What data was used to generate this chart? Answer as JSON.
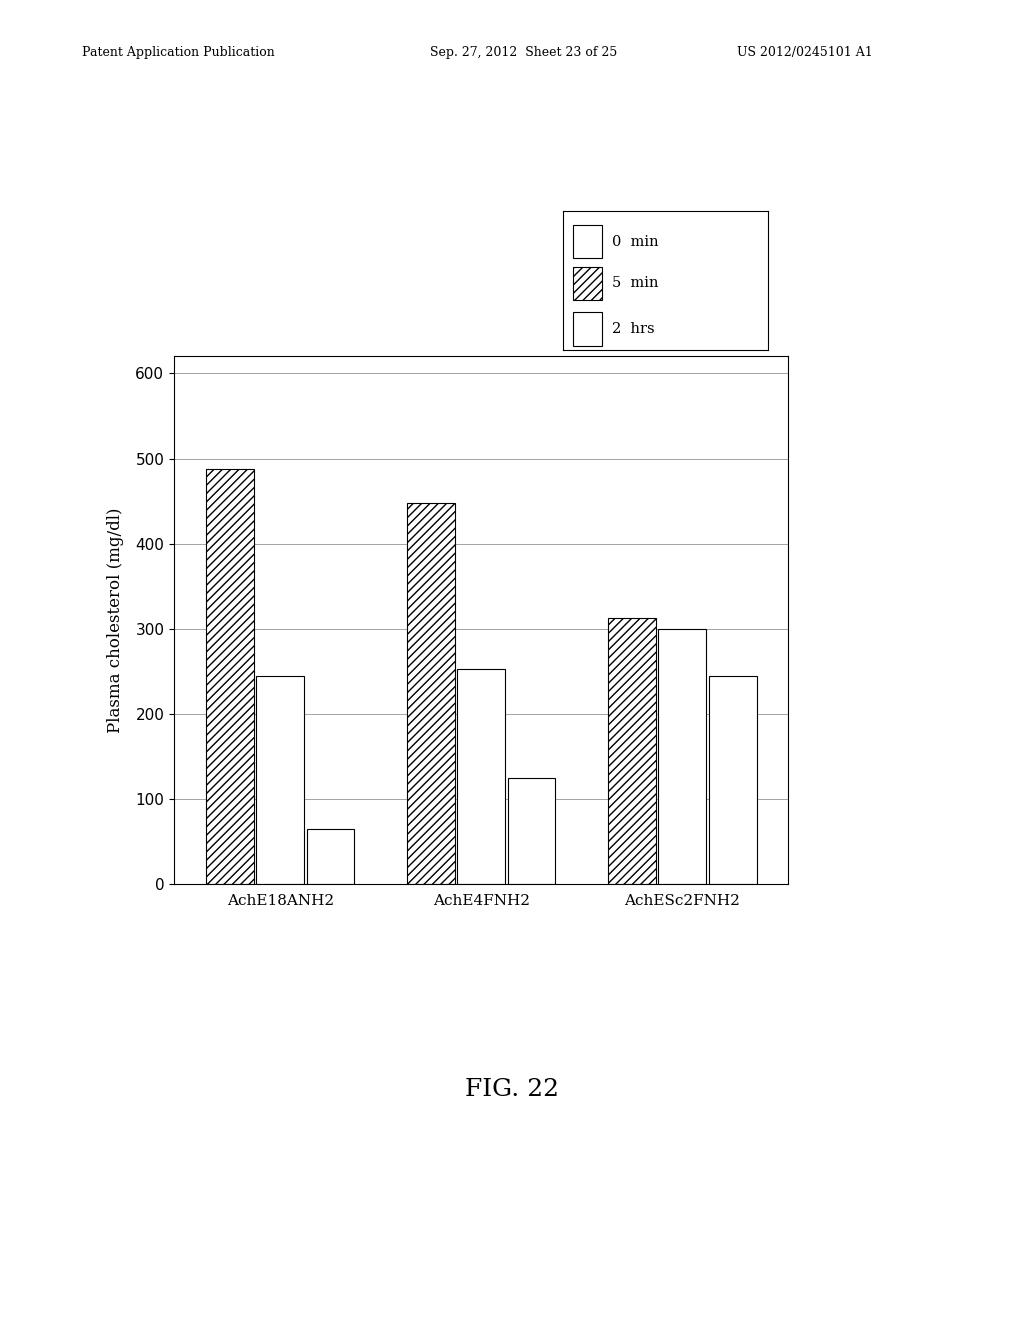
{
  "groups": [
    "AchE18ANH2",
    "AchE4FNH2",
    "AchESc2FNH2"
  ],
  "legend_labels": [
    "0  min",
    "5  min",
    "2  hrs"
  ],
  "values": [
    [
      488,
      245,
      65
    ],
    [
      448,
      253,
      125
    ],
    [
      313,
      300,
      245
    ]
  ],
  "bar_width": 0.18,
  "ylim": [
    0,
    620
  ],
  "yticks": [
    0,
    100,
    200,
    300,
    400,
    500,
    600
  ],
  "ylabel": "Plasma cholesterol (mg/dl)",
  "background_color": "#ffffff",
  "figure_label": "FIG. 22",
  "header_left": "Patent Application Publication",
  "header_mid": "Sep. 27, 2012  Sheet 23 of 25",
  "header_right": "US 2012/0245101 A1"
}
